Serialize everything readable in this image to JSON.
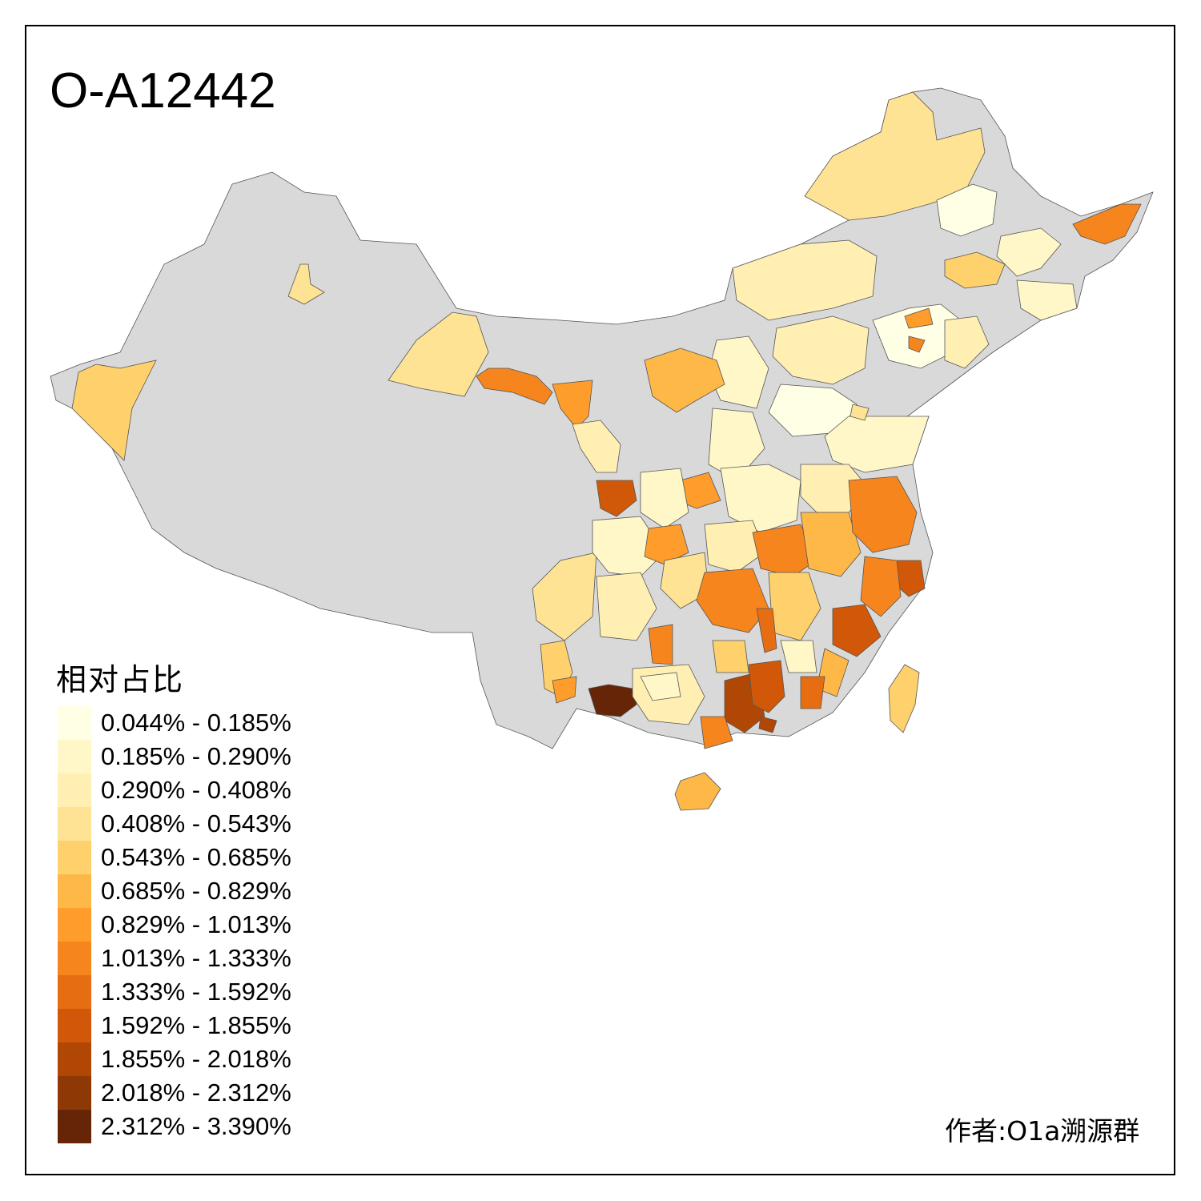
{
  "title": "O-A12442",
  "legend": {
    "title": "相对占比",
    "items": [
      {
        "label": "0.044% - 0.185%",
        "color": "#ffffe5"
      },
      {
        "label": "0.185% - 0.290%",
        "color": "#fff7c8"
      },
      {
        "label": "0.290% - 0.408%",
        "color": "#ffefb3"
      },
      {
        "label": "0.408% - 0.543%",
        "color": "#fee394"
      },
      {
        "label": "0.543% - 0.685%",
        "color": "#fed16c"
      },
      {
        "label": "0.685% - 0.829%",
        "color": "#feb848"
      },
      {
        "label": "0.829% - 1.013%",
        "color": "#fe9d2c"
      },
      {
        "label": "1.013% - 1.333%",
        "color": "#f6851e"
      },
      {
        "label": "1.333% - 1.592%",
        "color": "#e66d12"
      },
      {
        "label": "1.592% - 1.855%",
        "color": "#d05808"
      },
      {
        "label": "1.855% - 2.018%",
        "color": "#b14704"
      },
      {
        "label": "2.018% - 2.312%",
        "color": "#8e3905"
      },
      {
        "label": "2.312% - 3.390%",
        "color": "#662506"
      }
    ]
  },
  "credit": "作者:O1a溯源群",
  "colors": {
    "no_data": "#d9d9d9",
    "border": "#555555"
  }
}
